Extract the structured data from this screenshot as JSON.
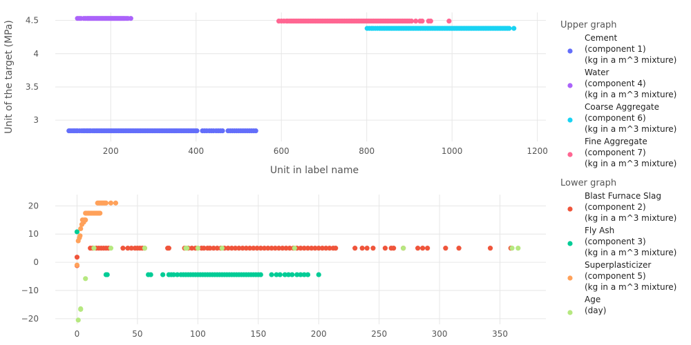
{
  "chart_data": [
    {
      "type": "scatter",
      "legend_group_title": "Upper graph",
      "xlabel": "Unit in label name",
      "ylabel": "Unit of the target (MPa)",
      "xlim": [
        70,
        1220
      ],
      "ylim": [
        2.68,
        4.62
      ],
      "xticks": [
        200,
        400,
        600,
        800,
        1000,
        1200
      ],
      "yticks": [
        3,
        3.5,
        4,
        4.5
      ],
      "ytick_labels": [
        "3",
        "3.5",
        "4",
        "4.5"
      ],
      "grid": true,
      "series": [
        {
          "name_lines": [
            "Cement",
            "(component 1)",
            "(kg in a m^3 mixture)"
          ],
          "color": "#636efa",
          "y": 2.84,
          "x": [
            102,
            105,
            109,
            113,
            116,
            120,
            122,
            127,
            132,
            136,
            139,
            143,
            146,
            150,
            153,
            158,
            162,
            166,
            170,
            174,
            178,
            182,
            186,
            190,
            194,
            198,
            202,
            206,
            210,
            214,
            218,
            222,
            226,
            230,
            234,
            238,
            242,
            246,
            250,
            254,
            258,
            262,
            266,
            270,
            274,
            278,
            282,
            286,
            290,
            294,
            298,
            302,
            306,
            310,
            314,
            318,
            322,
            326,
            330,
            334,
            338,
            342,
            346,
            350,
            354,
            358,
            362,
            366,
            370,
            374,
            378,
            382,
            386,
            390,
            394,
            398,
            402,
            415,
            420,
            425,
            431,
            436,
            441,
            447,
            452,
            457,
            462,
            475,
            480,
            485,
            490,
            495,
            500,
            505,
            510,
            515,
            520,
            525,
            530,
            535,
            540
          ]
        },
        {
          "name_lines": [
            "Water",
            "(component 4)",
            "(kg in a m^3 mixture)"
          ],
          "color": "#ab63fa",
          "y": 4.53,
          "x": [
            122,
            126,
            130,
            137,
            141,
            145,
            148,
            151,
            154,
            157,
            160,
            163,
            166,
            169,
            172,
            175,
            178,
            181,
            184,
            187,
            190,
            193,
            196,
            199,
            202,
            205,
            208,
            211,
            214,
            217,
            220,
            223,
            226,
            229,
            232,
            236,
            240,
            247
          ]
        },
        {
          "name_lines": [
            "Coarse Aggregate",
            "(component 6)",
            "(kg in a m^3 mixture)"
          ],
          "color": "#19d3f3",
          "y": 4.38,
          "x": [
            801,
            806,
            811,
            815,
            820,
            825,
            830,
            834,
            838,
            842,
            846,
            850,
            854,
            858,
            862,
            866,
            870,
            874,
            878,
            882,
            886,
            890,
            894,
            898,
            902,
            906,
            910,
            914,
            918,
            922,
            926,
            930,
            934,
            938,
            942,
            946,
            950,
            954,
            958,
            962,
            966,
            970,
            974,
            978,
            982,
            986,
            990,
            994,
            998,
            1002,
            1006,
            1010,
            1014,
            1018,
            1022,
            1026,
            1030,
            1034,
            1038,
            1042,
            1046,
            1050,
            1054,
            1058,
            1062,
            1066,
            1070,
            1074,
            1078,
            1082,
            1086,
            1090,
            1094,
            1098,
            1102,
            1106,
            1110,
            1114,
            1118,
            1122,
            1126,
            1130,
            1134,
            1145
          ]
        },
        {
          "name_lines": [
            "Fine Aggregate",
            "(component 7)",
            "(kg in a m^3 mixture)"
          ],
          "color": "#ff6692",
          "y": 4.49,
          "x": [
            594,
            600,
            606,
            612,
            615,
            620,
            624,
            628,
            632,
            636,
            640,
            644,
            648,
            652,
            656,
            660,
            664,
            668,
            672,
            676,
            680,
            684,
            688,
            692,
            696,
            700,
            704,
            708,
            712,
            716,
            720,
            724,
            728,
            732,
            736,
            740,
            744,
            748,
            752,
            756,
            760,
            764,
            768,
            772,
            776,
            780,
            784,
            788,
            792,
            796,
            800,
            804,
            808,
            812,
            816,
            820,
            824,
            828,
            832,
            836,
            840,
            844,
            848,
            852,
            856,
            860,
            864,
            868,
            872,
            876,
            880,
            884,
            888,
            892,
            896,
            900,
            905,
            915,
            925,
            930,
            945,
            950,
            993
          ]
        }
      ]
    },
    {
      "type": "scatter",
      "legend_group_title": "Lower graph",
      "xlabel": "",
      "ylabel": "",
      "xlim": [
        -18,
        388
      ],
      "ylim": [
        -22,
        24
      ],
      "xticks": [
        0,
        50,
        100,
        150,
        200,
        250,
        300,
        350
      ],
      "yticks": [
        -20,
        -10,
        0,
        10,
        20
      ],
      "ytick_labels": [
        "−20",
        "−10",
        "0",
        "10",
        "20"
      ],
      "grid": true,
      "series": [
        {
          "name_lines": [
            "Blast Furnace Slag",
            "(component 2)",
            "(kg in a m^3 mixture)"
          ],
          "color": "#ef553b",
          "points": [
            [
              0,
              1.8
            ],
            [
              0,
              -1.2
            ],
            [
              11,
              5
            ],
            [
              13,
              5
            ],
            [
              16,
              5
            ],
            [
              18,
              5
            ],
            [
              20,
              5
            ],
            [
              22,
              5
            ],
            [
              24,
              5
            ],
            [
              26,
              5
            ],
            [
              38,
              5
            ],
            [
              42,
              5
            ],
            [
              45,
              5
            ],
            [
              48,
              5
            ],
            [
              50,
              5
            ],
            [
              52,
              5
            ],
            [
              54,
              5
            ],
            [
              56,
              5
            ],
            [
              75,
              5
            ],
            [
              76,
              5
            ],
            [
              89,
              5
            ],
            [
              92,
              5
            ],
            [
              95,
              5
            ],
            [
              98,
              5
            ],
            [
              100,
              5
            ],
            [
              103,
              5
            ],
            [
              105,
              5
            ],
            [
              108,
              5
            ],
            [
              110,
              5
            ],
            [
              113,
              5
            ],
            [
              116,
              5
            ],
            [
              119,
              5
            ],
            [
              122,
              5
            ],
            [
              125,
              5
            ],
            [
              128,
              5
            ],
            [
              131,
              5
            ],
            [
              134,
              5
            ],
            [
              137,
              5
            ],
            [
              140,
              5
            ],
            [
              143,
              5
            ],
            [
              146,
              5
            ],
            [
              149,
              5
            ],
            [
              152,
              5
            ],
            [
              155,
              5
            ],
            [
              158,
              5
            ],
            [
              161,
              5
            ],
            [
              164,
              5
            ],
            [
              167,
              5
            ],
            [
              170,
              5
            ],
            [
              173,
              5
            ],
            [
              176,
              5
            ],
            [
              179,
              5
            ],
            [
              182,
              5
            ],
            [
              185,
              5
            ],
            [
              188,
              5
            ],
            [
              191,
              5
            ],
            [
              194,
              5
            ],
            [
              197,
              5
            ],
            [
              200,
              5
            ],
            [
              203,
              5
            ],
            [
              206,
              5
            ],
            [
              209,
              5
            ],
            [
              212,
              5
            ],
            [
              214,
              5
            ],
            [
              230,
              5
            ],
            [
              236,
              5
            ],
            [
              240,
              5
            ],
            [
              245,
              5
            ],
            [
              255,
              5
            ],
            [
              260,
              5
            ],
            [
              262,
              5
            ],
            [
              270,
              5
            ],
            [
              282,
              5
            ],
            [
              286,
              5
            ],
            [
              290,
              5
            ],
            [
              305,
              5
            ],
            [
              316,
              5
            ],
            [
              342,
              5
            ],
            [
              359,
              5
            ]
          ]
        },
        {
          "name_lines": [
            "Fly Ash",
            "(component 3)",
            "(kg in a m^3 mixture)"
          ],
          "color": "#00cc96",
          "points": [
            [
              0,
              10.8
            ],
            [
              24,
              -4.4
            ],
            [
              25,
              -4.4
            ],
            [
              59,
              -4.4
            ],
            [
              61,
              -4.4
            ],
            [
              71,
              -4.4
            ],
            [
              76,
              -4.4
            ],
            [
              78,
              -4.4
            ],
            [
              80,
              -4.4
            ],
            [
              83,
              -4.4
            ],
            [
              86,
              -4.4
            ],
            [
              88,
              -4.4
            ],
            [
              90,
              -4.4
            ],
            [
              92,
              -4.4
            ],
            [
              94,
              -4.4
            ],
            [
              96,
              -4.4
            ],
            [
              98,
              -4.4
            ],
            [
              100,
              -4.4
            ],
            [
              102,
              -4.4
            ],
            [
              104,
              -4.4
            ],
            [
              106,
              -4.4
            ],
            [
              108,
              -4.4
            ],
            [
              110,
              -4.4
            ],
            [
              112,
              -4.4
            ],
            [
              114,
              -4.4
            ],
            [
              116,
              -4.4
            ],
            [
              118,
              -4.4
            ],
            [
              120,
              -4.4
            ],
            [
              122,
              -4.4
            ],
            [
              124,
              -4.4
            ],
            [
              126,
              -4.4
            ],
            [
              128,
              -4.4
            ],
            [
              130,
              -4.4
            ],
            [
              132,
              -4.4
            ],
            [
              134,
              -4.4
            ],
            [
              136,
              -4.4
            ],
            [
              138,
              -4.4
            ],
            [
              140,
              -4.4
            ],
            [
              142,
              -4.4
            ],
            [
              144,
              -4.4
            ],
            [
              146,
              -4.4
            ],
            [
              148,
              -4.4
            ],
            [
              150,
              -4.4
            ],
            [
              152,
              -4.4
            ],
            [
              161,
              -4.4
            ],
            [
              165,
              -4.4
            ],
            [
              168,
              -4.4
            ],
            [
              172,
              -4.4
            ],
            [
              175,
              -4.4
            ],
            [
              178,
              -4.4
            ],
            [
              182,
              -4.4
            ],
            [
              185,
              -4.4
            ],
            [
              188,
              -4.4
            ],
            [
              191,
              -4.4
            ],
            [
              200,
              -4.4
            ]
          ]
        },
        {
          "name_lines": [
            "Superplasticizer",
            "(component 5)",
            "(kg in a m^3 mixture)"
          ],
          "color": "#ffa15a",
          "points": [
            [
              0,
              -1
            ],
            [
              1,
              7.6
            ],
            [
              2,
              8.7
            ],
            [
              2.5,
              9.4
            ],
            [
              3,
              11.9
            ],
            [
              4,
              13.4
            ],
            [
              4.5,
              15
            ],
            [
              5.5,
              14.2
            ],
            [
              6,
              15
            ],
            [
              7,
              15
            ],
            [
              7,
              17.4
            ],
            [
              8,
              17.4
            ],
            [
              9,
              17.4
            ],
            [
              10,
              17.4
            ],
            [
              11,
              17.4
            ],
            [
              12,
              17.4
            ],
            [
              13,
              17.4
            ],
            [
              14,
              17.4
            ],
            [
              15,
              17.4
            ],
            [
              16,
              17.4
            ],
            [
              17,
              17.4
            ],
            [
              18,
              17.4
            ],
            [
              19,
              17.4
            ],
            [
              17,
              21
            ],
            [
              18,
              21
            ],
            [
              19,
              21
            ],
            [
              20,
              21
            ],
            [
              21,
              21
            ],
            [
              22,
              21
            ],
            [
              23,
              21
            ],
            [
              24,
              21
            ],
            [
              28,
              21
            ],
            [
              32,
              21
            ]
          ]
        },
        {
          "name_lines": [
            "Age",
            "(day)"
          ],
          "color": "#b6e880",
          "points": [
            [
              1,
              -20.5
            ],
            [
              3,
              -16.5
            ],
            [
              3,
              -16.7
            ],
            [
              7,
              -5.8
            ],
            [
              14,
              5
            ],
            [
              28,
              5
            ],
            [
              56,
              5
            ],
            [
              90,
              5
            ],
            [
              91,
              5
            ],
            [
              100,
              5
            ],
            [
              120,
              5
            ],
            [
              180,
              5
            ],
            [
              270,
              5
            ],
            [
              360,
              5
            ],
            [
              365,
              5
            ]
          ]
        }
      ]
    }
  ]
}
